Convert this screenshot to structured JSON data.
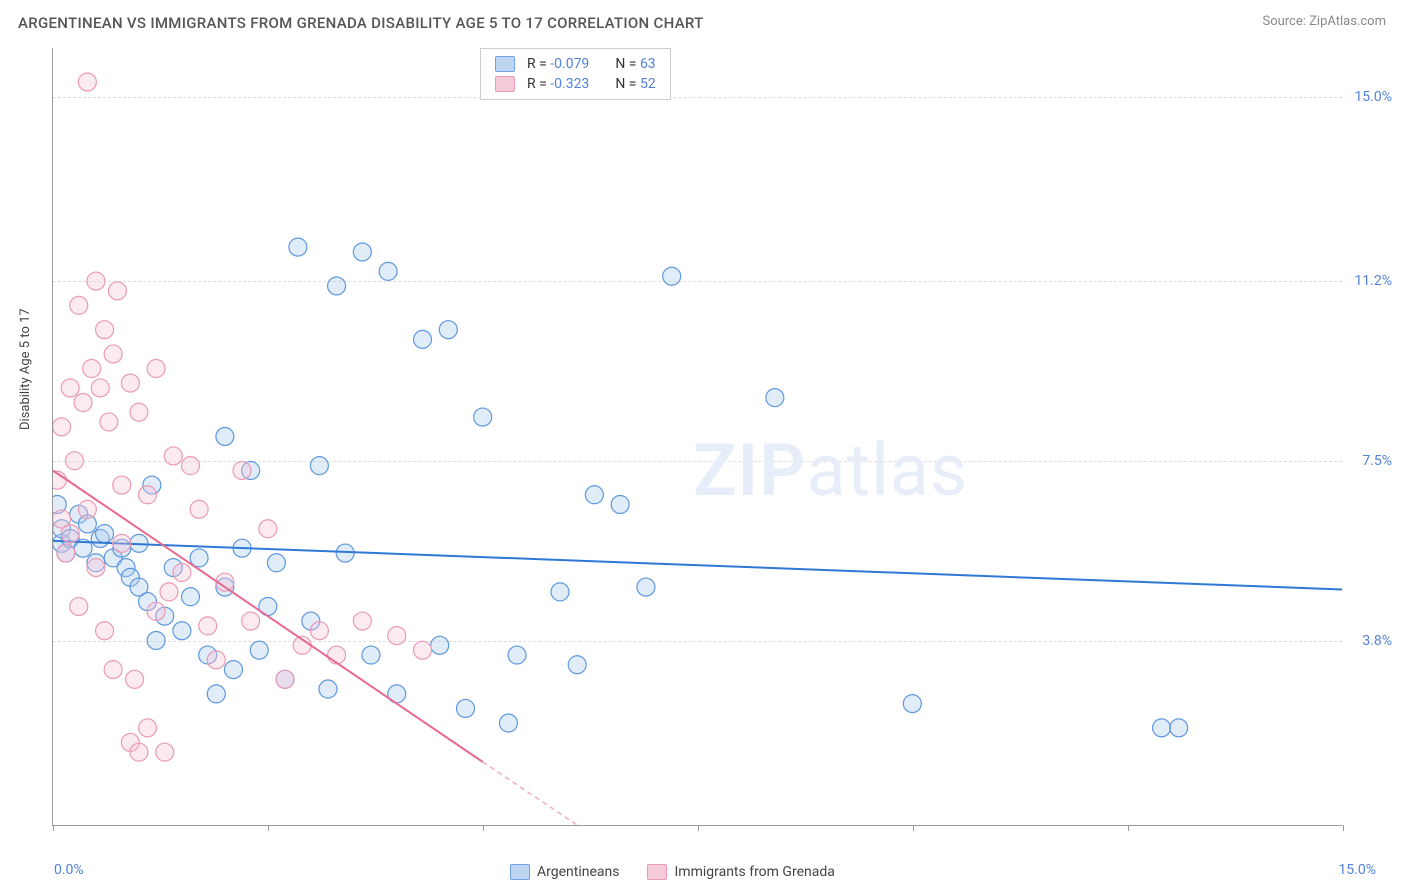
{
  "title": "ARGENTINEAN VS IMMIGRANTS FROM GRENADA DISABILITY AGE 5 TO 17 CORRELATION CHART",
  "source": "Source: ZipAtlas.com",
  "y_axis_label": "Disability Age 5 to 17",
  "watermark_bold": "ZIP",
  "watermark_rest": "atlas",
  "chart": {
    "type": "scatter",
    "xlim": [
      0,
      15
    ],
    "ylim": [
      0,
      16
    ],
    "x_tick_labels": {
      "min": "0.0%",
      "max": "15.0%"
    },
    "y_ticks": [
      {
        "v": 3.8,
        "label": "3.8%"
      },
      {
        "v": 7.5,
        "label": "7.5%"
      },
      {
        "v": 11.2,
        "label": "11.2%"
      },
      {
        "v": 15.0,
        "label": "15.0%"
      }
    ],
    "x_tick_positions": [
      0,
      2.5,
      5,
      7.5,
      10,
      12.5,
      15
    ],
    "grid_color": "#dddddd",
    "background": "#ffffff",
    "axis_color": "#999999",
    "marker_radius": 9,
    "marker_fill_opacity": 0.35,
    "line_width": 2,
    "series": [
      {
        "name": "Argentineans",
        "R": "-0.079",
        "N": "63",
        "color_stroke": "#5d98e0",
        "color_fill": "#a9c9ef",
        "swatch_fill": "#bdd5f1",
        "swatch_border": "#6ea3e0",
        "trend": {
          "x1": 0,
          "y1": 5.85,
          "x2": 15,
          "y2": 4.85,
          "color": "#2f78d6"
        },
        "points": [
          [
            0.05,
            6.6
          ],
          [
            0.1,
            5.8
          ],
          [
            0.1,
            6.1
          ],
          [
            0.15,
            5.6
          ],
          [
            0.2,
            5.9
          ],
          [
            0.3,
            6.4
          ],
          [
            0.35,
            5.7
          ],
          [
            0.4,
            6.2
          ],
          [
            0.5,
            5.4
          ],
          [
            0.55,
            5.9
          ],
          [
            0.6,
            6.0
          ],
          [
            0.7,
            5.5
          ],
          [
            0.8,
            5.7
          ],
          [
            0.85,
            5.3
          ],
          [
            0.9,
            5.1
          ],
          [
            1.0,
            5.8
          ],
          [
            1.0,
            4.9
          ],
          [
            1.1,
            4.6
          ],
          [
            1.15,
            7.0
          ],
          [
            1.2,
            3.8
          ],
          [
            1.3,
            4.3
          ],
          [
            1.4,
            5.3
          ],
          [
            1.5,
            4.0
          ],
          [
            1.6,
            4.7
          ],
          [
            1.7,
            5.5
          ],
          [
            1.8,
            3.5
          ],
          [
            1.9,
            2.7
          ],
          [
            2.0,
            8.0
          ],
          [
            2.0,
            4.9
          ],
          [
            2.1,
            3.2
          ],
          [
            2.2,
            5.7
          ],
          [
            2.3,
            7.3
          ],
          [
            2.4,
            3.6
          ],
          [
            2.5,
            4.5
          ],
          [
            2.6,
            5.4
          ],
          [
            2.7,
            3.0
          ],
          [
            2.85,
            11.9
          ],
          [
            3.0,
            4.2
          ],
          [
            3.1,
            7.4
          ],
          [
            3.2,
            2.8
          ],
          [
            3.3,
            11.1
          ],
          [
            3.4,
            5.6
          ],
          [
            3.6,
            11.8
          ],
          [
            3.7,
            3.5
          ],
          [
            3.9,
            11.4
          ],
          [
            4.0,
            2.7
          ],
          [
            4.3,
            10.0
          ],
          [
            4.5,
            3.7
          ],
          [
            4.6,
            10.2
          ],
          [
            4.8,
            2.4
          ],
          [
            5.0,
            8.4
          ],
          [
            5.3,
            2.1
          ],
          [
            5.4,
            3.5
          ],
          [
            5.9,
            4.8
          ],
          [
            6.1,
            3.3
          ],
          [
            6.3,
            6.8
          ],
          [
            6.6,
            6.6
          ],
          [
            6.9,
            4.9
          ],
          [
            7.2,
            11.3
          ],
          [
            8.4,
            8.8
          ],
          [
            10.0,
            2.5
          ],
          [
            12.9,
            2.0
          ],
          [
            13.1,
            2.0
          ]
        ]
      },
      {
        "name": "Immigrants from Grenada",
        "R": "-0.323",
        "N": "52",
        "color_stroke": "#ea9ab5",
        "color_fill": "#f4c3d3",
        "swatch_fill": "#f6cbd9",
        "swatch_border": "#ea9ab5",
        "trend": {
          "x1": 0,
          "y1": 7.3,
          "x2": 5.0,
          "y2": 1.3,
          "color": "#e96890"
        },
        "trend_dashed_ext": {
          "x1": 5.0,
          "y1": 1.3,
          "x2": 6.1,
          "y2": 0
        },
        "points": [
          [
            0.05,
            7.1
          ],
          [
            0.1,
            6.3
          ],
          [
            0.1,
            8.2
          ],
          [
            0.15,
            5.6
          ],
          [
            0.2,
            9.0
          ],
          [
            0.2,
            6.0
          ],
          [
            0.25,
            7.5
          ],
          [
            0.3,
            10.7
          ],
          [
            0.3,
            4.5
          ],
          [
            0.35,
            8.7
          ],
          [
            0.4,
            15.3
          ],
          [
            0.4,
            6.5
          ],
          [
            0.45,
            9.4
          ],
          [
            0.5,
            11.2
          ],
          [
            0.5,
            5.3
          ],
          [
            0.55,
            9.0
          ],
          [
            0.6,
            10.2
          ],
          [
            0.6,
            4.0
          ],
          [
            0.65,
            8.3
          ],
          [
            0.7,
            9.7
          ],
          [
            0.7,
            3.2
          ],
          [
            0.75,
            11.0
          ],
          [
            0.8,
            7.0
          ],
          [
            0.8,
            5.8
          ],
          [
            0.9,
            9.1
          ],
          [
            0.9,
            1.7
          ],
          [
            0.95,
            3.0
          ],
          [
            1.0,
            8.5
          ],
          [
            1.0,
            1.5
          ],
          [
            1.1,
            6.8
          ],
          [
            1.1,
            2.0
          ],
          [
            1.2,
            9.4
          ],
          [
            1.2,
            4.4
          ],
          [
            1.3,
            1.5
          ],
          [
            1.35,
            4.8
          ],
          [
            1.4,
            7.6
          ],
          [
            1.5,
            5.2
          ],
          [
            1.6,
            7.4
          ],
          [
            1.7,
            6.5
          ],
          [
            1.8,
            4.1
          ],
          [
            1.9,
            3.4
          ],
          [
            2.0,
            5.0
          ],
          [
            2.2,
            7.3
          ],
          [
            2.3,
            4.2
          ],
          [
            2.5,
            6.1
          ],
          [
            2.7,
            3.0
          ],
          [
            2.9,
            3.7
          ],
          [
            3.1,
            4.0
          ],
          [
            3.3,
            3.5
          ],
          [
            3.6,
            4.2
          ],
          [
            4.0,
            3.9
          ],
          [
            4.3,
            3.6
          ]
        ]
      }
    ]
  },
  "legend_bottom": [
    {
      "label": "Argentineans",
      "fill": "#bdd5f1",
      "border": "#6ea3e0"
    },
    {
      "label": "Immigrants from Grenada",
      "fill": "#f6cbd9",
      "border": "#ea9ab5"
    }
  ]
}
